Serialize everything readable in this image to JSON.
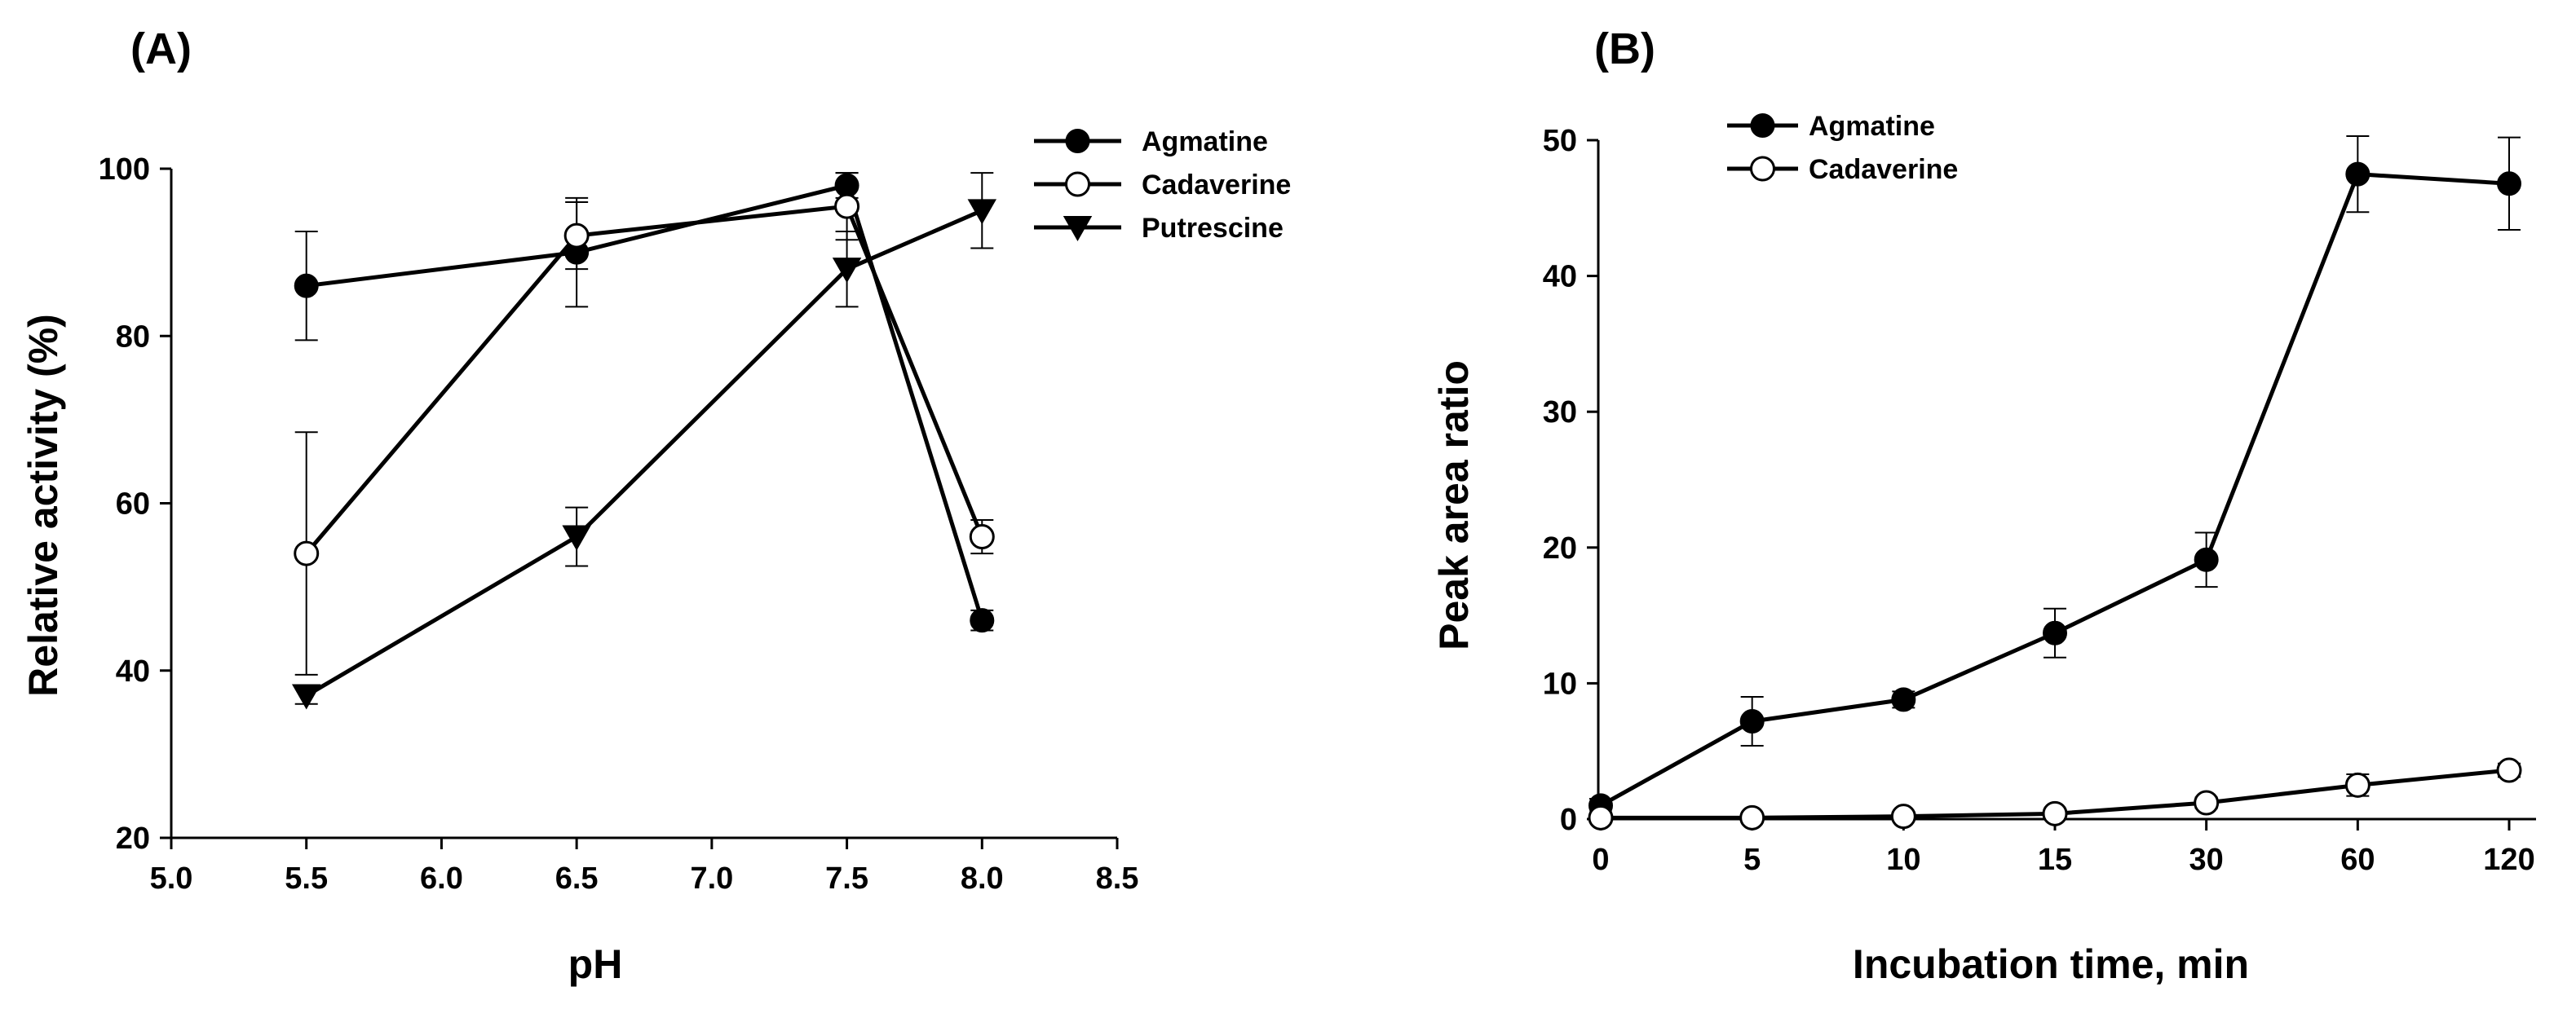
{
  "chart_data": [
    {
      "panel_label": "(A)",
      "type": "line",
      "xlabel": "pH",
      "ylabel": "Relative activity (%)",
      "xlim": [
        5.0,
        8.5
      ],
      "ylim": [
        20,
        100
      ],
      "xticks": [
        5.0,
        5.5,
        6.0,
        6.5,
        7.0,
        7.5,
        8.0,
        8.5
      ],
      "xtick_labels": [
        "5.0",
        "5.5",
        "6.0",
        "6.5",
        "7.0",
        "7.5",
        "8.0",
        "8.5"
      ],
      "yticks": [
        20,
        40,
        60,
        80,
        100
      ],
      "ytick_labels": [
        "20",
        "40",
        "60",
        "80",
        "100"
      ],
      "legend_position": "top-right",
      "series": [
        {
          "name": "Agmatine",
          "marker": "filled-circle",
          "x": [
            5.5,
            6.5,
            7.5,
            8.0
          ],
          "y": [
            86,
            90,
            98,
            46
          ],
          "err": [
            6.5,
            6.5,
            1.5,
            1.2
          ]
        },
        {
          "name": "Cadaverine",
          "marker": "open-circle",
          "x": [
            5.5,
            6.5,
            7.5,
            8.0
          ],
          "y": [
            54,
            92,
            95.5,
            56
          ],
          "err": [
            14.5,
            4,
            4,
            2
          ]
        },
        {
          "name": "Putrescine",
          "marker": "filled-triangle-down",
          "x": [
            5.5,
            6.5,
            7.5,
            8.0
          ],
          "y": [
            37,
            56,
            88,
            95
          ],
          "err": [
            1,
            3.5,
            4.5,
            4.5
          ]
        }
      ]
    },
    {
      "panel_label": "(B)",
      "type": "line",
      "xlabel": "Incubation time, min",
      "ylabel": "Peak area ratio",
      "categories": [
        "0",
        "5",
        "10",
        "15",
        "30",
        "60",
        "120"
      ],
      "ylim": [
        0,
        50
      ],
      "yticks": [
        0,
        10,
        20,
        30,
        40,
        50
      ],
      "ytick_labels": [
        "0",
        "10",
        "20",
        "30",
        "40",
        "50"
      ],
      "legend_position": "top-left",
      "series": [
        {
          "name": "Agmatine",
          "marker": "filled-circle",
          "values": [
            1,
            7.2,
            8.8,
            13.7,
            19.1,
            47.5,
            46.8
          ],
          "err": [
            0.5,
            1.8,
            0.6,
            1.8,
            2,
            2.8,
            3.4
          ]
        },
        {
          "name": "Cadaverine",
          "marker": "open-circle",
          "values": [
            0.1,
            0.1,
            0.2,
            0.4,
            1.2,
            2.5,
            3.6
          ],
          "err": [
            0.6,
            0.2,
            0.2,
            0.2,
            0.4,
            0.8,
            0.5
          ]
        }
      ]
    }
  ]
}
